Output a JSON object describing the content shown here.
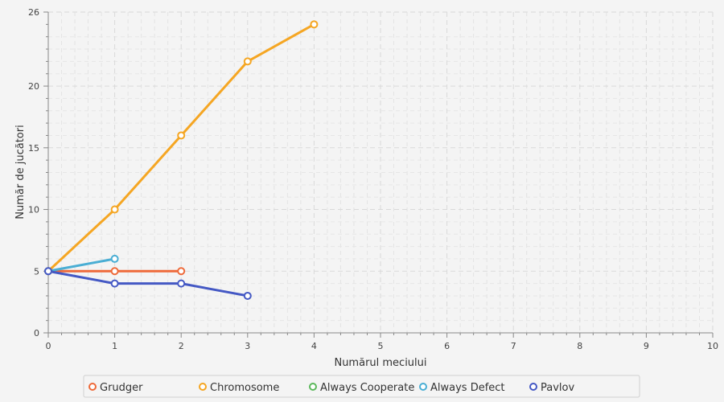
{
  "chart_data": {
    "type": "line",
    "xlabel": "Numărul meciului",
    "ylabel": "Număr de jucători",
    "xlim": [
      0,
      10
    ],
    "ylim": [
      0,
      26
    ],
    "x_ticks": [
      "0",
      "1",
      "2",
      "3",
      "4",
      "5",
      "6",
      "7",
      "8",
      "9",
      "10"
    ],
    "y_ticks": [
      "0",
      "5",
      "10",
      "15",
      "20",
      "26"
    ],
    "grid": true,
    "legend_position": "bottom",
    "series": [
      {
        "name": "Grudger",
        "color": "#ee6a3a",
        "x": [
          0,
          1,
          2
        ],
        "y": [
          5,
          5,
          5
        ]
      },
      {
        "name": "Chromosome",
        "color": "#f5a623",
        "x": [
          0,
          1,
          2,
          3,
          4
        ],
        "y": [
          5,
          10,
          16,
          22,
          25
        ]
      },
      {
        "name": "Always Cooperate",
        "color": "#5cb85c",
        "x": [],
        "y": []
      },
      {
        "name": "Always Defect",
        "color": "#4aaed4",
        "x": [
          0,
          1
        ],
        "y": [
          5,
          6
        ]
      },
      {
        "name": "Pavlov",
        "color": "#4458c4",
        "x": [
          0,
          1,
          2,
          3
        ],
        "y": [
          5,
          4,
          4,
          3
        ]
      }
    ]
  }
}
